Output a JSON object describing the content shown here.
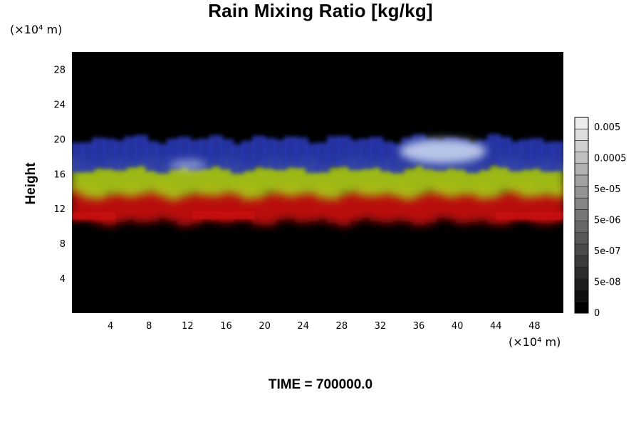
{
  "chart_data": {
    "type": "heatmap",
    "title": "Rain Mixing Ratio [kg/kg]",
    "ylabel": "Height",
    "y_unit": "(×10⁴ m)",
    "x_unit": "(×10⁴ m)",
    "x_ticks": [
      "4",
      "8",
      "12",
      "16",
      "20",
      "24",
      "28",
      "32",
      "36",
      "40",
      "44",
      "48"
    ],
    "y_ticks": [
      "4",
      "8",
      "12",
      "16",
      "20",
      "24",
      "28"
    ],
    "xlim": [
      0,
      51
    ],
    "ylim": [
      0,
      30
    ],
    "colorbar": {
      "labels": [
        "0.005",
        "0.0005",
        "5e-05",
        "5e-06",
        "5e-07",
        "5e-08",
        "0"
      ]
    },
    "bands": [
      {
        "color": "#c81010",
        "y_range": [
          10.5,
          14.5
        ]
      },
      {
        "color": "#a8c818",
        "y_range": [
          13.5,
          17.5
        ]
      },
      {
        "color": "#2838b0",
        "y_range": [
          16.5,
          20
        ]
      }
    ],
    "colors": {
      "background": "#000000",
      "highlight": "#c8d4f0"
    }
  },
  "footer": {
    "time_label": "TIME = 700000.0"
  }
}
